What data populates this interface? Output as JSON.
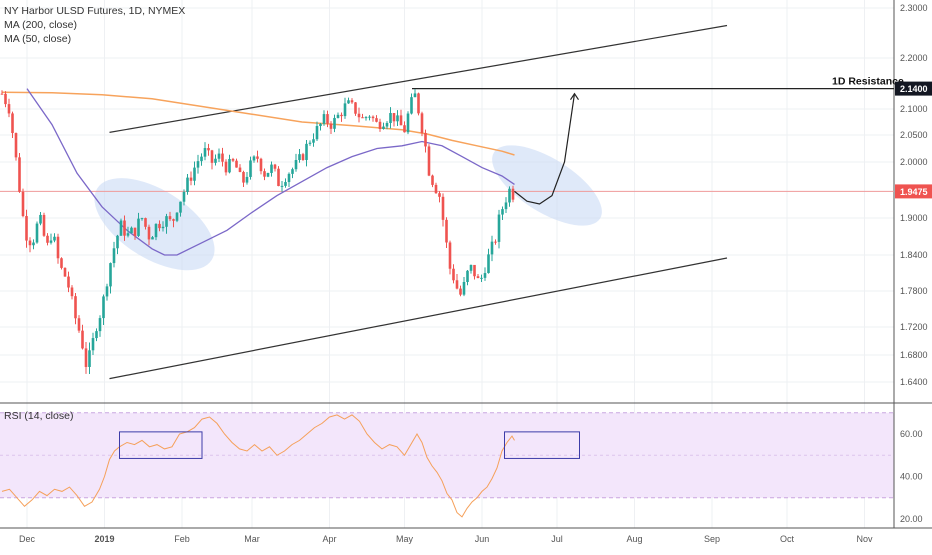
{
  "legend": {
    "title": "NY Harbor ULSD Futures, 1D, NYMEX",
    "ma200": "MA (200, close)",
    "ma50": "MA (50, close)",
    "rsi": "RSI (14, close)"
  },
  "annotations": {
    "resistance_label": "1D Resistance"
  },
  "colors": {
    "up": "#26a69a",
    "down": "#ef5350",
    "ma200": "#f7a35c",
    "ma50": "#7b68c8",
    "rsi": "#f5a05a",
    "rsi_band": "#f3e6fb",
    "ellipse": "#c9daf5",
    "box": "#3c3ca8"
  },
  "chart_data": [
    {
      "type": "candlestick",
      "title": "NY Harbor ULSD Futures, 1D, NYMEX",
      "ylim": [
        1.6,
        2.3
      ],
      "yticks": [
        "2.3000",
        "2.2000",
        "2.1000",
        "2.0500",
        "2.0000",
        "1.9000",
        "1.8400",
        "1.7800",
        "1.7200",
        "1.6800",
        "1.6400"
      ],
      "y_tick_values": [
        2.3,
        2.2,
        2.1,
        2.05,
        2.0,
        1.9,
        1.84,
        1.78,
        1.72,
        1.68,
        1.64
      ],
      "x_tick_labels": [
        "Dec",
        "2019",
        "Feb",
        "Mar",
        "Apr",
        "May",
        "Jun",
        "Jul",
        "Aug",
        "Sep",
        "Oct",
        "Nov"
      ],
      "x_tick_days": [
        10,
        41,
        72,
        100,
        131,
        161,
        192,
        222,
        253,
        284,
        314,
        345
      ],
      "price_labels": [
        {
          "text": "2.1400",
          "value": 2.14,
          "color": "#131722"
        },
        {
          "text": "1.9475",
          "value": 1.9475,
          "color": "#ef5350"
        }
      ],
      "current_price": 1.9475,
      "resistance": 2.14,
      "candle_path": [
        [
          0,
          2.13
        ],
        [
          3,
          2.1
        ],
        [
          6,
          1.99
        ],
        [
          9,
          1.88
        ],
        [
          12,
          1.86
        ],
        [
          15,
          1.9
        ],
        [
          18,
          1.85
        ],
        [
          20,
          1.88
        ],
        [
          23,
          1.82
        ],
        [
          26,
          1.8
        ],
        [
          29,
          1.74
        ],
        [
          32,
          1.7
        ],
        [
          34,
          1.66
        ],
        [
          36,
          1.69
        ],
        [
          38,
          1.73
        ],
        [
          40,
          1.75
        ],
        [
          42,
          1.8
        ],
        [
          44,
          1.84
        ],
        [
          46,
          1.87
        ],
        [
          48,
          1.89
        ],
        [
          50,
          1.87
        ],
        [
          53,
          1.88
        ],
        [
          56,
          1.9
        ],
        [
          59,
          1.87
        ],
        [
          62,
          1.89
        ],
        [
          65,
          1.9
        ],
        [
          68,
          1.89
        ],
        [
          70,
          1.92
        ],
        [
          72,
          1.94
        ],
        [
          75,
          1.97
        ],
        [
          78,
          2.0
        ],
        [
          81,
          2.02
        ],
        [
          84,
          2.0
        ],
        [
          87,
          2.01
        ],
        [
          90,
          1.99
        ],
        [
          93,
          2.0
        ],
        [
          96,
          1.96
        ],
        [
          99,
          1.99
        ],
        [
          102,
          2.01
        ],
        [
          105,
          1.98
        ],
        [
          108,
          1.99
        ],
        [
          111,
          1.96
        ],
        [
          114,
          1.98
        ],
        [
          117,
          1.99
        ],
        [
          120,
          2.01
        ],
        [
          123,
          2.04
        ],
        [
          126,
          2.06
        ],
        [
          129,
          2.08
        ],
        [
          132,
          2.07
        ],
        [
          135,
          2.09
        ],
        [
          138,
          2.11
        ],
        [
          141,
          2.1
        ],
        [
          144,
          2.08
        ],
        [
          147,
          2.09
        ],
        [
          150,
          2.07
        ],
        [
          153,
          2.08
        ],
        [
          156,
          2.09
        ],
        [
          159,
          2.07
        ],
        [
          161,
          2.06
        ],
        [
          163,
          2.1
        ],
        [
          165,
          2.13
        ],
        [
          167,
          2.09
        ],
        [
          169,
          2.04
        ],
        [
          171,
          1.98
        ],
        [
          173,
          1.96
        ],
        [
          175,
          1.94
        ],
        [
          177,
          1.88
        ],
        [
          179,
          1.82
        ],
        [
          181,
          1.8
        ],
        [
          183,
          1.77
        ],
        [
          185,
          1.79
        ],
        [
          187,
          1.82
        ],
        [
          189,
          1.81
        ],
        [
          191,
          1.79
        ],
        [
          193,
          1.82
        ],
        [
          195,
          1.84
        ],
        [
          197,
          1.86
        ],
        [
          199,
          1.9
        ],
        [
          201,
          1.93
        ],
        [
          203,
          1.95
        ],
        [
          205,
          1.94
        ]
      ],
      "ma200_path": [
        [
          0,
          2.133
        ],
        [
          20,
          2.132
        ],
        [
          40,
          2.128
        ],
        [
          60,
          2.12
        ],
        [
          80,
          2.105
        ],
        [
          100,
          2.09
        ],
        [
          120,
          2.075
        ],
        [
          140,
          2.068
        ],
        [
          160,
          2.06
        ],
        [
          170,
          2.052
        ],
        [
          180,
          2.04
        ],
        [
          190,
          2.03
        ],
        [
          200,
          2.02
        ],
        [
          205,
          2.013
        ]
      ],
      "ma50_path": [
        [
          10,
          2.14
        ],
        [
          20,
          2.07
        ],
        [
          30,
          1.98
        ],
        [
          40,
          1.92
        ],
        [
          50,
          1.88
        ],
        [
          60,
          1.85
        ],
        [
          65,
          1.84
        ],
        [
          70,
          1.84
        ],
        [
          80,
          1.86
        ],
        [
          90,
          1.88
        ],
        [
          100,
          1.91
        ],
        [
          110,
          1.94
        ],
        [
          120,
          1.965
        ],
        [
          130,
          1.99
        ],
        [
          140,
          2.01
        ],
        [
          150,
          2.025
        ],
        [
          160,
          2.03
        ],
        [
          168,
          2.038
        ],
        [
          176,
          2.03
        ],
        [
          184,
          2.01
        ],
        [
          192,
          1.99
        ],
        [
          200,
          1.975
        ],
        [
          205,
          1.96
        ]
      ],
      "channel": {
        "upper": [
          [
            43,
            2.055
          ],
          [
            290,
            2.265
          ]
        ],
        "lower": [
          [
            43,
            1.645
          ],
          [
            290,
            1.835
          ]
        ],
        "resistance_segment": [
          [
            164,
            2.14
          ],
          [
            324,
            2.14
          ]
        ]
      },
      "projection": [
        [
          205,
          1.9475
        ],
        [
          210,
          1.93
        ],
        [
          215,
          1.925
        ],
        [
          220,
          1.94
        ],
        [
          225,
          2.0
        ],
        [
          229,
          2.13
        ]
      ],
      "ellipses": [
        {
          "x": 61,
          "y": 1.89,
          "rx_days": 27,
          "ry_value": 0.06
        },
        {
          "x": 218,
          "y": 1.958,
          "rx_days": 25,
          "ry_value": 0.048
        }
      ]
    },
    {
      "type": "line",
      "title": "RSI (14, close)",
      "ylim": [
        15,
        75
      ],
      "yticks": [
        "60.00",
        "40.00",
        "20.00"
      ],
      "y_tick_values": [
        60,
        40,
        20
      ],
      "band": [
        30,
        70
      ],
      "rsi_path": [
        [
          0,
          33
        ],
        [
          3,
          34
        ],
        [
          6,
          30
        ],
        [
          9,
          26
        ],
        [
          12,
          29
        ],
        [
          15,
          33
        ],
        [
          18,
          31
        ],
        [
          21,
          34
        ],
        [
          24,
          33
        ],
        [
          27,
          35
        ],
        [
          30,
          31
        ],
        [
          33,
          26
        ],
        [
          36,
          28
        ],
        [
          39,
          34
        ],
        [
          41,
          40
        ],
        [
          43,
          48
        ],
        [
          45,
          52
        ],
        [
          47,
          54
        ],
        [
          50,
          56
        ],
        [
          53,
          55
        ],
        [
          56,
          57
        ],
        [
          59,
          54
        ],
        [
          62,
          55
        ],
        [
          65,
          53
        ],
        [
          68,
          54
        ],
        [
          71,
          60
        ],
        [
          74,
          61
        ],
        [
          77,
          63
        ],
        [
          80,
          67
        ],
        [
          83,
          68
        ],
        [
          86,
          65
        ],
        [
          89,
          60
        ],
        [
          92,
          56
        ],
        [
          95,
          53
        ],
        [
          98,
          52
        ],
        [
          101,
          55
        ],
        [
          104,
          52
        ],
        [
          107,
          54
        ],
        [
          110,
          50
        ],
        [
          113,
          52
        ],
        [
          116,
          55
        ],
        [
          119,
          57
        ],
        [
          122,
          60
        ],
        [
          125,
          63
        ],
        [
          128,
          65
        ],
        [
          131,
          68
        ],
        [
          134,
          69
        ],
        [
          137,
          67
        ],
        [
          140,
          69
        ],
        [
          143,
          66
        ],
        [
          146,
          60
        ],
        [
          149,
          56
        ],
        [
          152,
          53
        ],
        [
          155,
          55
        ],
        [
          158,
          54
        ],
        [
          161,
          50
        ],
        [
          164,
          56
        ],
        [
          166,
          60
        ],
        [
          168,
          56
        ],
        [
          170,
          49
        ],
        [
          172,
          45
        ],
        [
          174,
          42
        ],
        [
          176,
          38
        ],
        [
          178,
          32
        ],
        [
          180,
          29
        ],
        [
          182,
          23
        ],
        [
          184,
          21
        ],
        [
          186,
          25
        ],
        [
          188,
          28
        ],
        [
          190,
          30
        ],
        [
          192,
          33
        ],
        [
          194,
          35
        ],
        [
          196,
          39
        ],
        [
          198,
          44
        ],
        [
          200,
          52
        ],
        [
          202,
          56
        ],
        [
          204,
          59
        ],
        [
          205,
          57
        ]
      ],
      "boxes": [
        {
          "x0": 47,
          "x1": 80,
          "y0": 48.5,
          "y1": 61
        },
        {
          "x0": 201,
          "x1": 231,
          "y0": 48.5,
          "y1": 61
        }
      ]
    }
  ]
}
